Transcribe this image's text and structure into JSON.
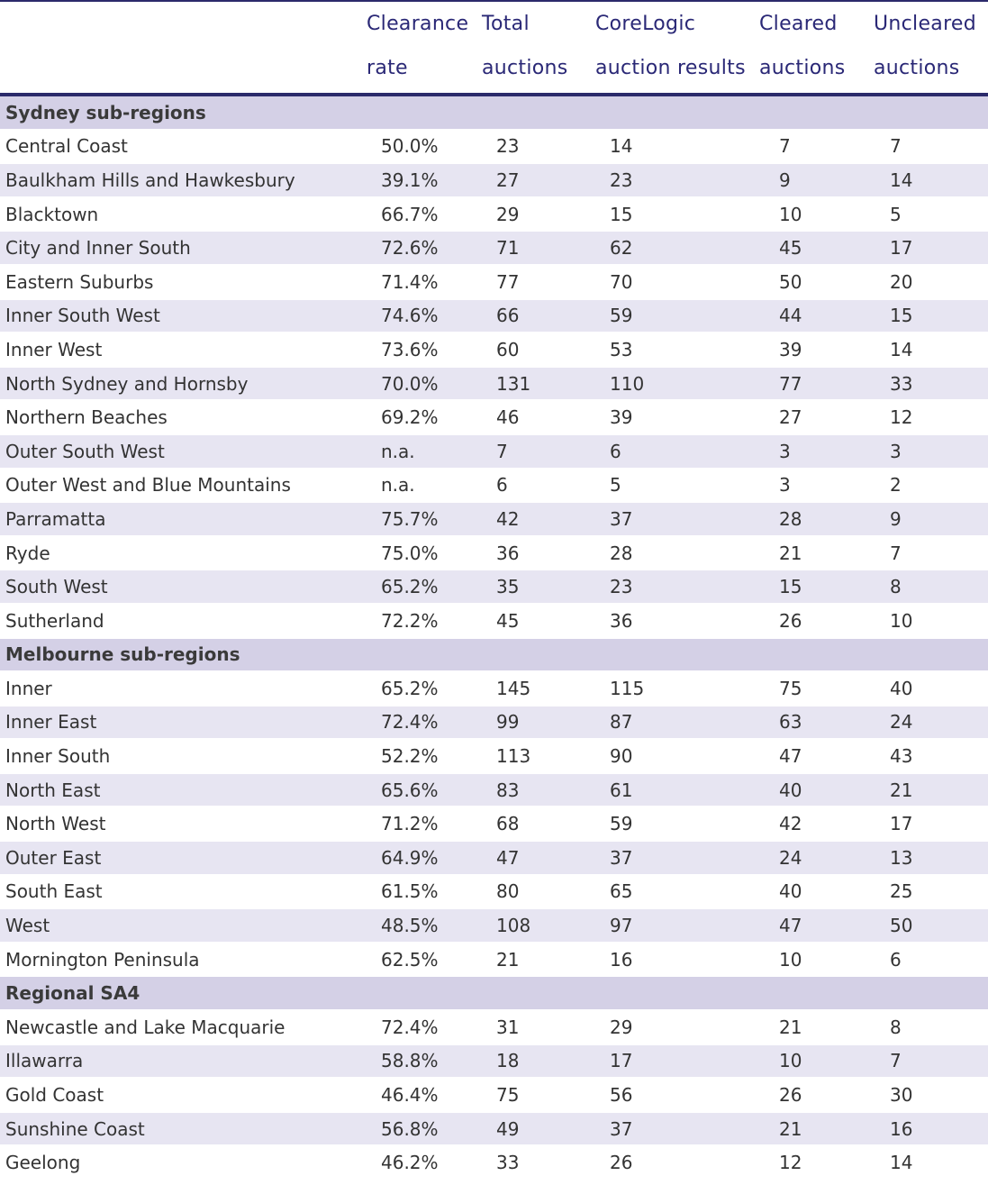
{
  "header": {
    "clearance_rate": [
      "Clearance",
      "rate"
    ],
    "total_auctions": [
      "Total",
      "auctions"
    ],
    "corelogic_results": [
      "CoreLogic",
      "auction results"
    ],
    "cleared_auctions": [
      "Cleared",
      "auctions"
    ],
    "uncleared_auctions": [
      "Uncleared",
      "auctions"
    ]
  },
  "sections": [
    {
      "title": "Sydney sub-regions",
      "rows": [
        [
          "Central Coast",
          "50.0%",
          "23",
          "14",
          "7",
          "7"
        ],
        [
          "Baulkham Hills and Hawkesbury",
          "39.1%",
          "27",
          "23",
          "9",
          "14"
        ],
        [
          "Blacktown",
          "66.7%",
          "29",
          "15",
          "10",
          "5"
        ],
        [
          "City and Inner South",
          "72.6%",
          "71",
          "62",
          "45",
          "17"
        ],
        [
          "Eastern Suburbs",
          "71.4%",
          "77",
          "70",
          "50",
          "20"
        ],
        [
          "Inner South West",
          "74.6%",
          "66",
          "59",
          "44",
          "15"
        ],
        [
          "Inner West",
          "73.6%",
          "60",
          "53",
          "39",
          "14"
        ],
        [
          "North Sydney and Hornsby",
          "70.0%",
          "131",
          "110",
          "77",
          "33"
        ],
        [
          "Northern Beaches",
          "69.2%",
          "46",
          "39",
          "27",
          "12"
        ],
        [
          "Outer South West",
          "n.a.",
          "7",
          "6",
          "3",
          "3"
        ],
        [
          "Outer West and Blue Mountains",
          "n.a.",
          "6",
          "5",
          "3",
          "2"
        ],
        [
          "Parramatta",
          "75.7%",
          "42",
          "37",
          "28",
          "9"
        ],
        [
          "Ryde",
          "75.0%",
          "36",
          "28",
          "21",
          "7"
        ],
        [
          "South West",
          "65.2%",
          "35",
          "23",
          "15",
          "8"
        ],
        [
          "Sutherland",
          "72.2%",
          "45",
          "36",
          "26",
          "10"
        ]
      ]
    },
    {
      "title": "Melbourne sub-regions",
      "rows": [
        [
          "Inner",
          "65.2%",
          "145",
          "115",
          "75",
          "40"
        ],
        [
          "Inner East",
          "72.4%",
          "99",
          "87",
          "63",
          "24"
        ],
        [
          "Inner South",
          "52.2%",
          "113",
          "90",
          "47",
          "43"
        ],
        [
          "North East",
          "65.6%",
          "83",
          "61",
          "40",
          "21"
        ],
        [
          "North West",
          "71.2%",
          "68",
          "59",
          "42",
          "17"
        ],
        [
          "Outer East",
          "64.9%",
          "47",
          "37",
          "24",
          "13"
        ],
        [
          "South East",
          "61.5%",
          "80",
          "65",
          "40",
          "25"
        ],
        [
          "West",
          "48.5%",
          "108",
          "97",
          "47",
          "50"
        ],
        [
          "Mornington Peninsula",
          "62.5%",
          "21",
          "16",
          "10",
          "6"
        ]
      ]
    },
    {
      "title": "Regional SA4",
      "rows": [
        [
          "Newcastle and Lake Macquarie",
          "72.4%",
          "31",
          "29",
          "21",
          "8"
        ],
        [
          "Illawarra",
          "58.8%",
          "18",
          "17",
          "10",
          "7"
        ],
        [
          "Gold Coast",
          "46.4%",
          "75",
          "56",
          "26",
          "30"
        ],
        [
          "Sunshine Coast",
          "56.8%",
          "49",
          "37",
          "21",
          "16"
        ],
        [
          "Geelong",
          "46.2%",
          "33",
          "26",
          "12",
          "14"
        ]
      ]
    }
  ]
}
